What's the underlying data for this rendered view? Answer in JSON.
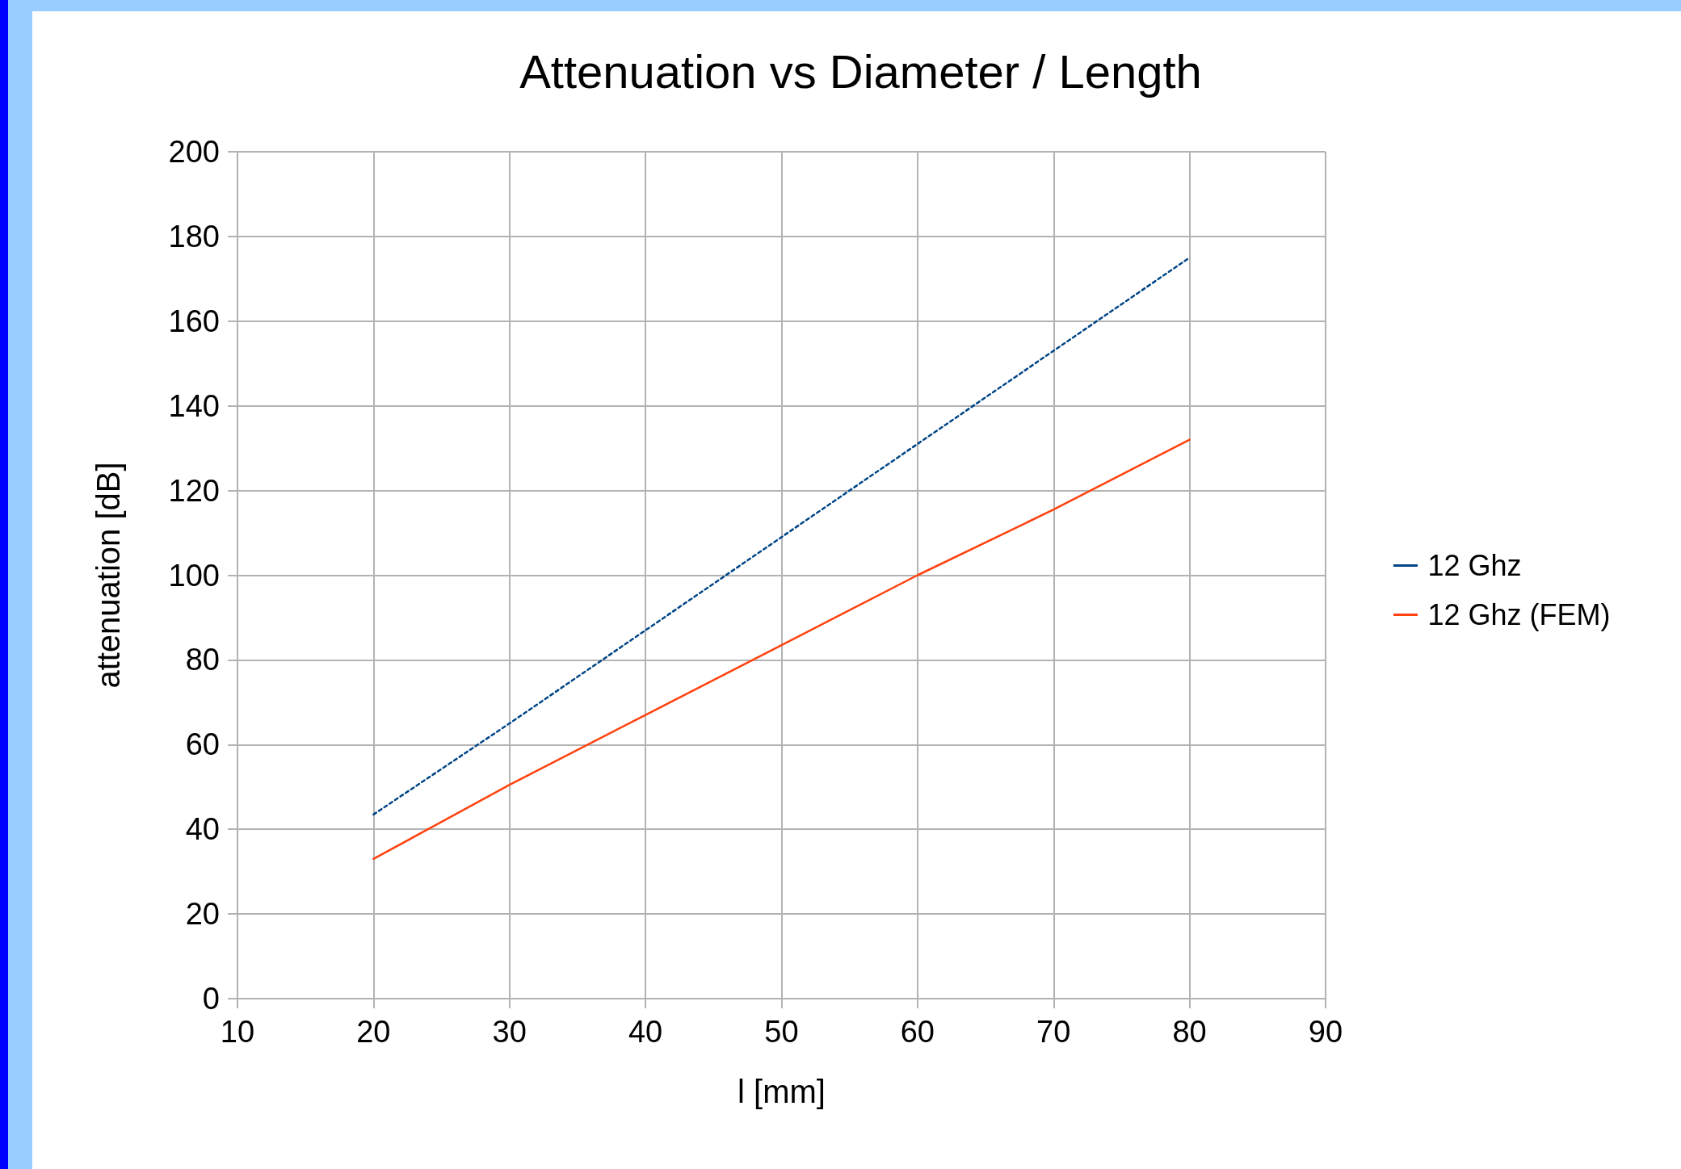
{
  "chart_data": {
    "type": "line",
    "title": "Attenuation vs Diameter / Length",
    "xlabel": "l [mm]",
    "ylabel": "attenuation [dB]",
    "x": [
      20,
      30,
      40,
      50,
      60,
      70,
      80
    ],
    "series": [
      {
        "name": "12 Ghz",
        "color": "#004586",
        "line_style": "dashed",
        "values": [
          43.5,
          65,
          87,
          109,
          131,
          153,
          175
        ]
      },
      {
        "name": "12 Ghz (FEM)",
        "color": "#ff420e",
        "line_style": "solid",
        "values": [
          33,
          50.5,
          67,
          83.5,
          100,
          115.5,
          132
        ]
      }
    ],
    "xlim": [
      10,
      90
    ],
    "xticks": [
      10,
      20,
      30,
      40,
      50,
      60,
      70,
      80,
      90
    ],
    "ylim": [
      0,
      200
    ],
    "yticks": [
      0,
      20,
      40,
      60,
      80,
      100,
      120,
      140,
      160,
      180,
      200
    ],
    "grid": true,
    "legend": "right",
    "marker": "none"
  }
}
